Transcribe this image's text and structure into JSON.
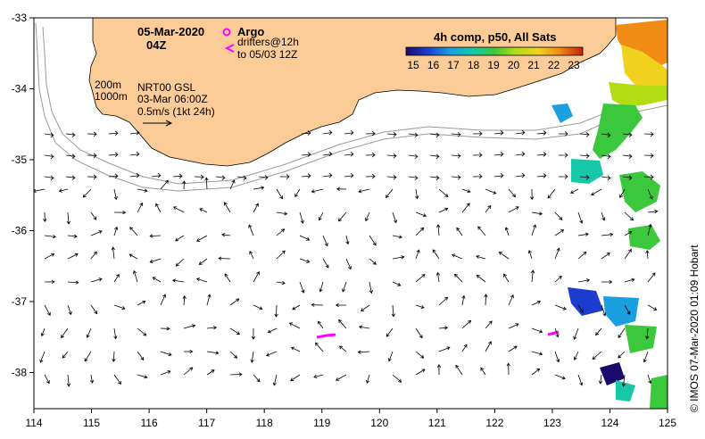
{
  "map": {
    "date_line1": "05-Mar-2020",
    "date_line2": "04Z",
    "argo_label": "Argo",
    "drifters_label": "drifters@12h",
    "drifters_range": "to 05/03 12Z",
    "isobath_200": "200m",
    "isobath_1000": "1000m",
    "altimetry_line1": "NRT00 GSL",
    "altimetry_line2": "03-Mar 06:00Z",
    "scale_label": "0.5m/s (1kt 24h)",
    "colorbar_title": "4h comp, p50, All Sats",
    "colorbar_ticks": [
      "15",
      "16",
      "17",
      "18",
      "19",
      "20",
      "21",
      "22",
      "23"
    ],
    "lon_ticks": [
      "114",
      "115",
      "116",
      "117",
      "118",
      "119",
      "120",
      "121",
      "122",
      "123",
      "124",
      "125"
    ],
    "lat_ticks": [
      "-33",
      "-34",
      "-35",
      "-36",
      "-37",
      "-38"
    ],
    "credit": "© IMOS 07-Mar-2020 01:09 Hobart",
    "colors": {
      "land": "#fbcb98",
      "isobath": "#9a9a9a",
      "drifter": "#ff00ff",
      "arrow": "#000000"
    }
  }
}
